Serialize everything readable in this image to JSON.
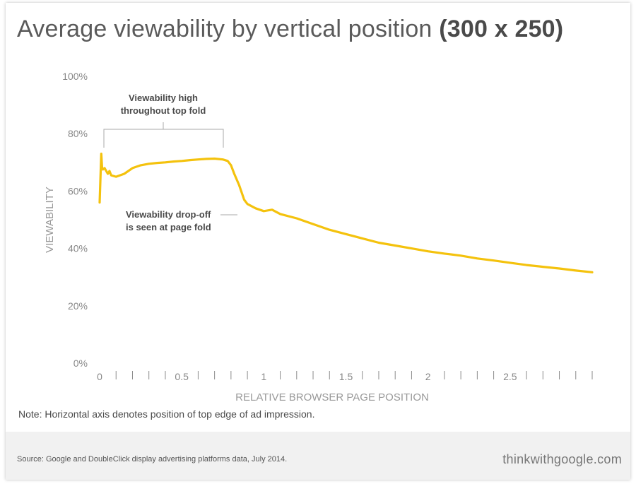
{
  "header": {
    "title_main": "Average viewability by vertical position",
    "title_bold": "(300 x 250)"
  },
  "footer": {
    "note": "Note: Horizontal axis denotes position of top edge of ad impression.",
    "source": "Source: Google and DoubleClick display advertising platforms data, July 2014.",
    "brand": "thinkwithgoogle.com"
  },
  "colors": {
    "line": "#F4C20D",
    "axis_text": "#888888",
    "annotation_text": "#4a4a4a",
    "bracket": "#aaaaaa"
  },
  "chart_data": {
    "type": "line",
    "title": "Average viewability by vertical position (300 x 250)",
    "xlabel": "RELATIVE BROWSER PAGE POSITION",
    "ylabel": "VIEWABILITY",
    "xlim": [
      0,
      3
    ],
    "ylim": [
      0,
      100
    ],
    "x_ticks": [
      {
        "value": 0,
        "label": "0"
      },
      {
        "value": 0.5,
        "label": "0.5"
      },
      {
        "value": 1,
        "label": "1"
      },
      {
        "value": 1.5,
        "label": "1.5"
      },
      {
        "value": 2,
        "label": "2"
      },
      {
        "value": 2.5,
        "label": "2.5"
      }
    ],
    "x_minor_step": 0.1,
    "y_ticks": [
      {
        "value": 0,
        "label": "0%"
      },
      {
        "value": 20,
        "label": "20%"
      },
      {
        "value": 40,
        "label": "40%"
      },
      {
        "value": 60,
        "label": "60%"
      },
      {
        "value": 80,
        "label": "80%"
      },
      {
        "value": 100,
        "label": "100%"
      }
    ],
    "grid": false,
    "series": [
      {
        "x": [
          0,
          0.01,
          0.015,
          0.02,
          0.03,
          0.05,
          0.06,
          0.07,
          0.1,
          0.15,
          0.2,
          0.25,
          0.3,
          0.35,
          0.4,
          0.45,
          0.5,
          0.55,
          0.6,
          0.65,
          0.7,
          0.75,
          0.78,
          0.8,
          0.82,
          0.85,
          0.88,
          0.9,
          0.95,
          1.0,
          1.05,
          1.1,
          1.2,
          1.3,
          1.4,
          1.5,
          1.6,
          1.7,
          1.8,
          1.9,
          2.0,
          2.1,
          2.2,
          2.3,
          2.4,
          2.5,
          2.6,
          2.7,
          2.8,
          2.9,
          3.0
        ],
        "values": [
          56,
          73,
          68,
          67.5,
          68,
          66,
          67,
          65.5,
          65,
          66,
          68,
          69,
          69.5,
          69.8,
          70,
          70.3,
          70.5,
          70.8,
          71,
          71.2,
          71.3,
          71,
          70.5,
          69,
          66,
          62,
          57,
          55.5,
          54,
          53,
          53.5,
          52,
          50.5,
          48.5,
          46.5,
          45,
          43.5,
          42,
          41,
          40,
          39,
          38.2,
          37.5,
          36.5,
          35.8,
          35,
          34.2,
          33.6,
          33,
          32.3,
          31.7
        ]
      }
    ],
    "annotations": [
      {
        "line1": "Viewability high",
        "line2": "throughout top fold",
        "x_start": 0.02,
        "x_end": 0.75
      },
      {
        "line1": "Viewability drop-off",
        "line2": "is seen at page fold"
      }
    ]
  }
}
